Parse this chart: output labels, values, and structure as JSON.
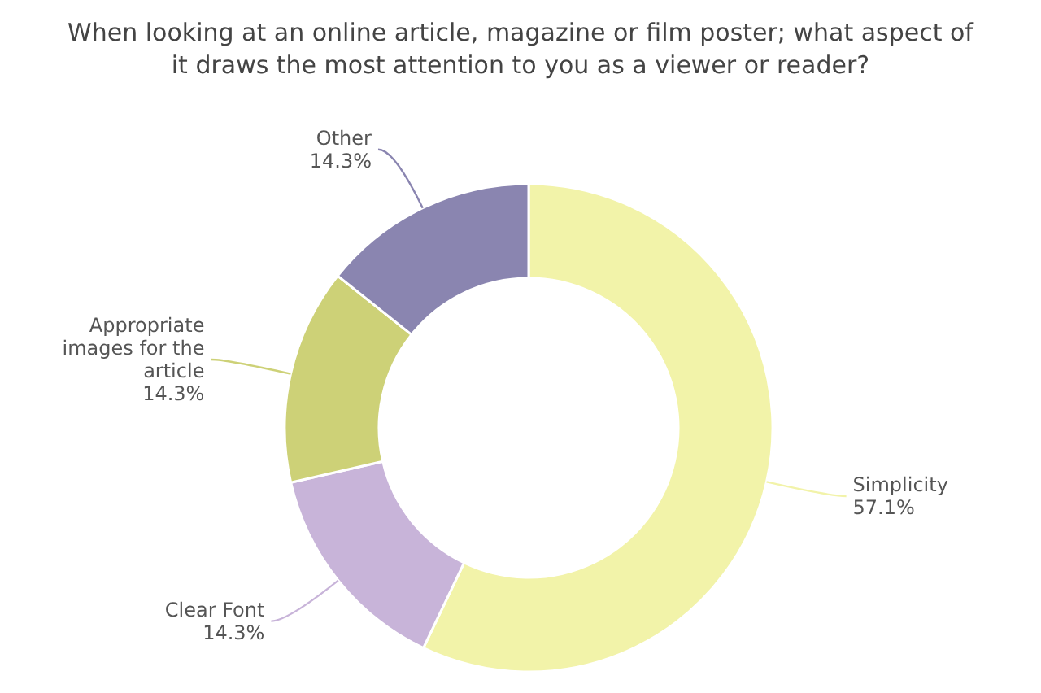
{
  "chart_data": {
    "type": "donut",
    "title": "When looking at an online article, magazine or film poster; what aspect of it draws the most attention to you as a viewer or reader?",
    "categories": [
      "Simplicity",
      "Clear Font",
      "Appropriate images for the article",
      "Other"
    ],
    "values": [
      57.1,
      14.3,
      14.3,
      14.3
    ],
    "value_labels": [
      "57.1%",
      "14.3%",
      "14.3%",
      "14.3%"
    ],
    "colors": [
      "#f2f3a9",
      "#c8b4d9",
      "#cdd177",
      "#8a85b0"
    ],
    "legend": false
  }
}
